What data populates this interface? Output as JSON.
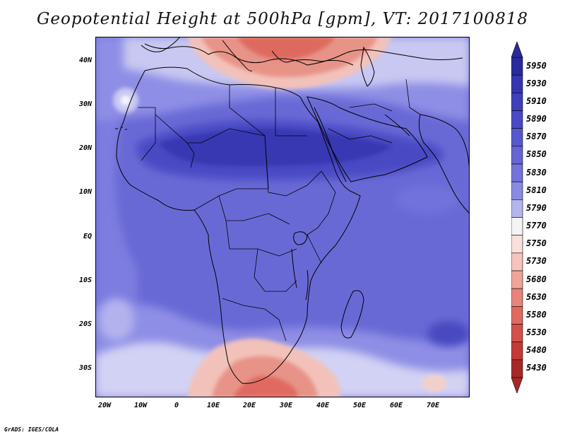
{
  "title": "Geopotential Height at 500hPa [gpm], VT: 2017100818",
  "credit": "GrADS: IGES/COLA",
  "lat_labels": [
    "40N",
    "30N",
    "20N",
    "10N",
    "EQ",
    "10S",
    "20S",
    "30S"
  ],
  "lon_labels": [
    "20W",
    "10W",
    "0",
    "10E",
    "20E",
    "30E",
    "40E",
    "50E",
    "60E",
    "70E"
  ],
  "colorbar": {
    "labels": [
      "5950",
      "5930",
      "5910",
      "5890",
      "5870",
      "5850",
      "5830",
      "5810",
      "5790",
      "5770",
      "5750",
      "5730",
      "5680",
      "5630",
      "5580",
      "5530",
      "5480",
      "5430"
    ],
    "colors": [
      "#2a2a9e",
      "#3636b0",
      "#4040bb",
      "#4a4ac6",
      "#5757cf",
      "#6565d6",
      "#7373dc",
      "#8a8ae4",
      "#b4b4ee",
      "#f4f4f4",
      "#fae0dc",
      "#f6c4bc",
      "#f0a49a",
      "#e8847a",
      "#e06a62",
      "#d4504a",
      "#c43a36",
      "#a82828"
    ]
  },
  "colors": {
    "ridge_core": "#3a3ab0",
    "base_field": "#6464d4",
    "trough_north": "#e27468",
    "trough_south": "#df6f66"
  }
}
